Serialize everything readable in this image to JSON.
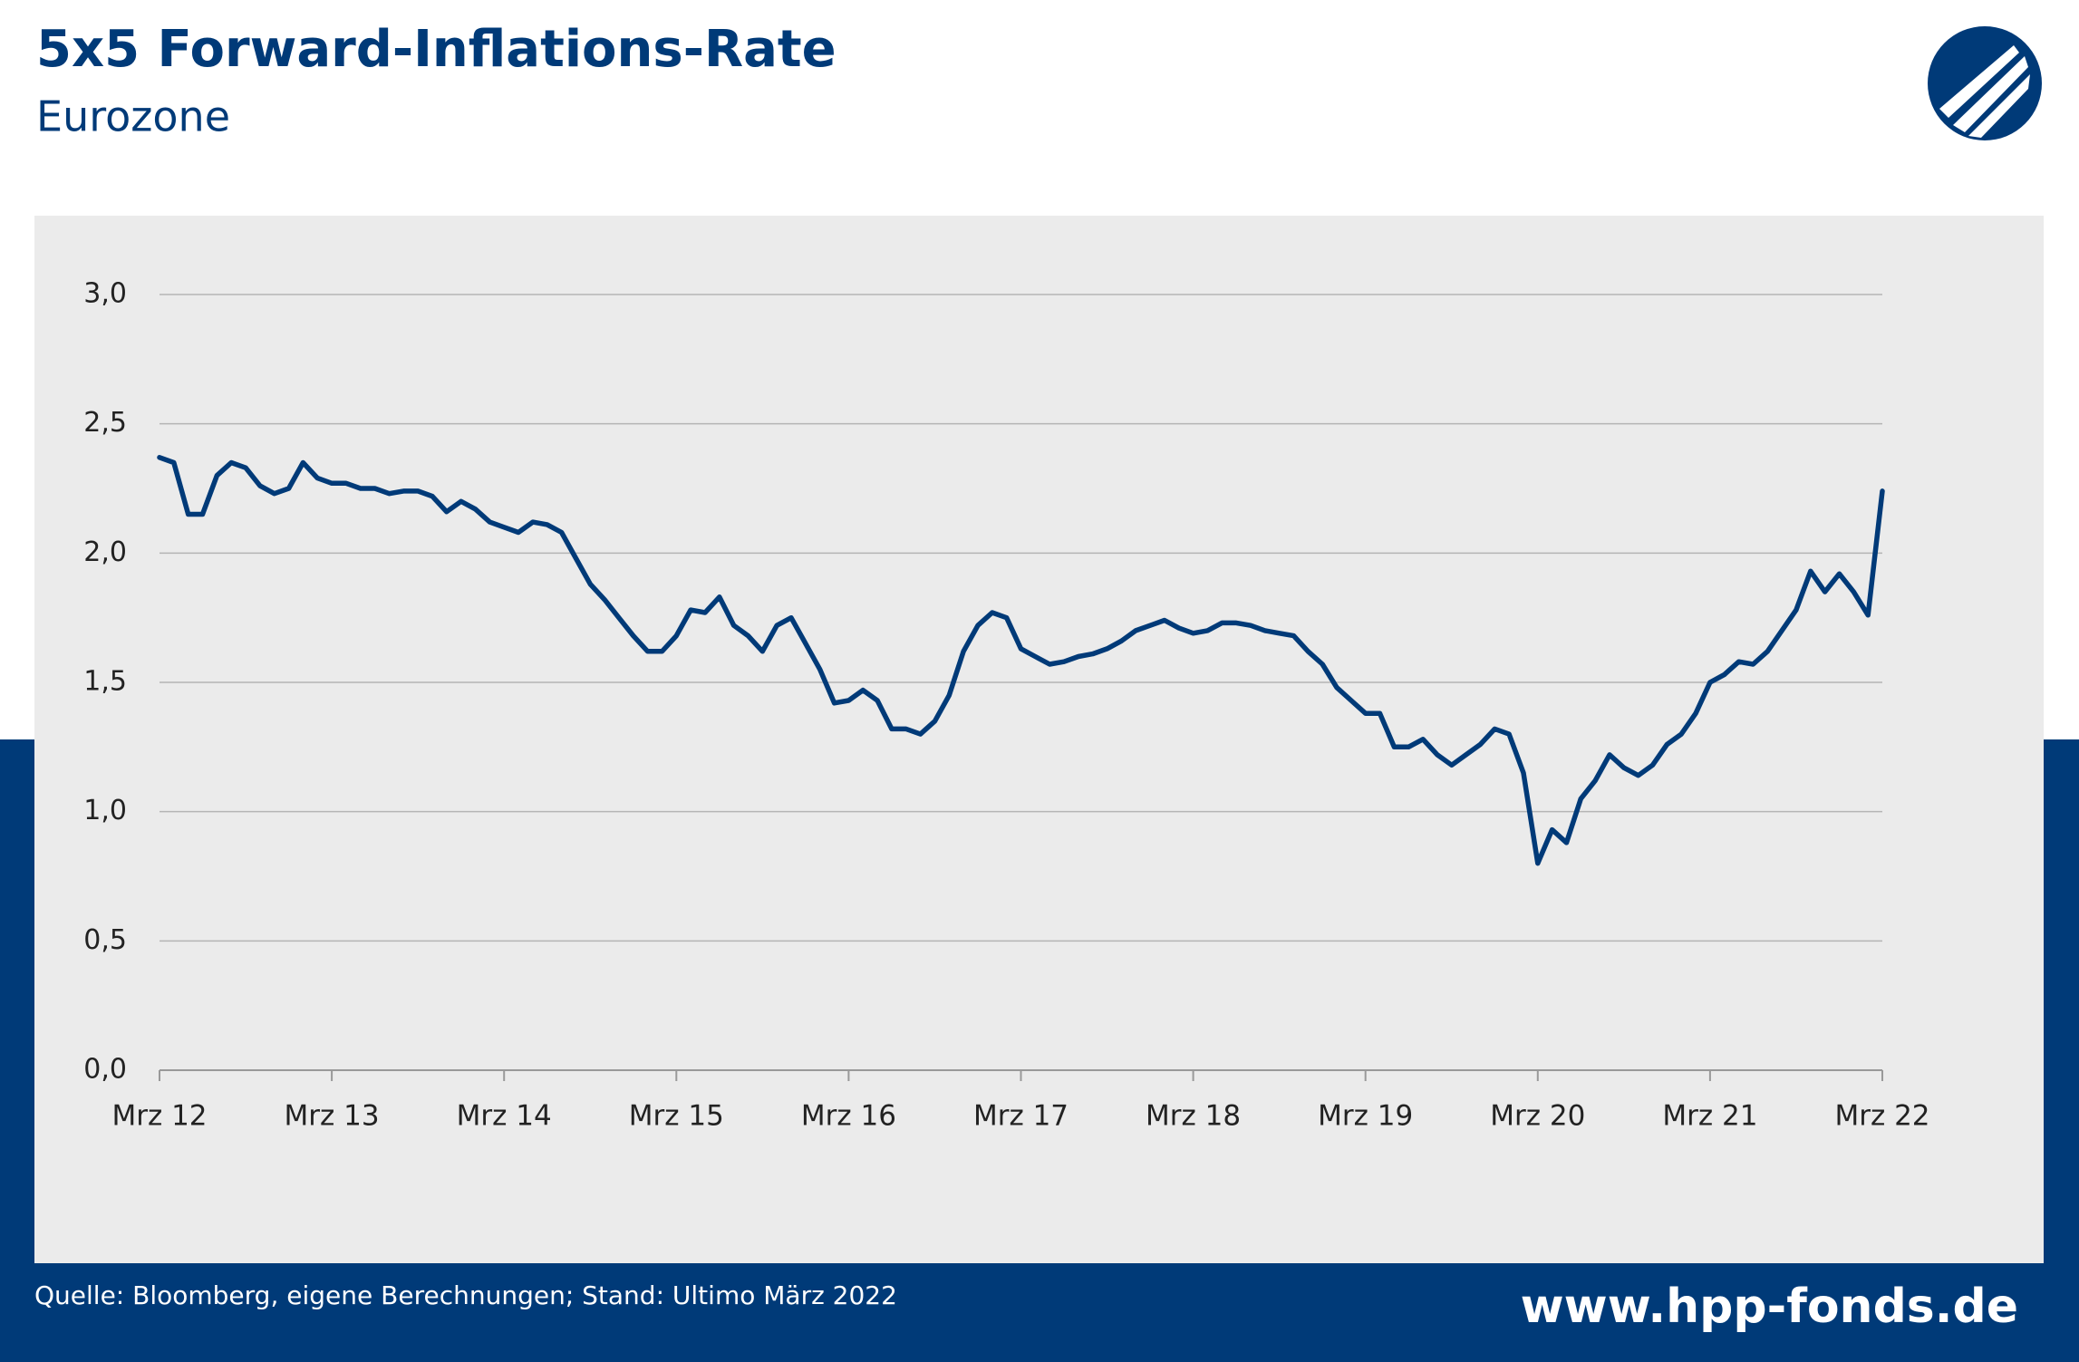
{
  "chart_data": {
    "type": "line",
    "title": "5x5 Forward-Inflations-Rate",
    "subtitle": "Eurozone",
    "source": "Quelle: Bloomberg, eigene Berechnungen; Stand: Ultimo März 2022",
    "website": "www.hpp-fonds.de",
    "categories": [
      "Mrz 12",
      null,
      null,
      null,
      null,
      null,
      null,
      null,
      null,
      null,
      null,
      null,
      "Mrz 13",
      null,
      null,
      null,
      null,
      null,
      null,
      null,
      null,
      null,
      null,
      null,
      "Mrz 14",
      null,
      null,
      null,
      null,
      null,
      null,
      null,
      null,
      null,
      null,
      null,
      "Mrz 15",
      null,
      null,
      null,
      null,
      null,
      null,
      null,
      null,
      null,
      null,
      null,
      "Mrz 16",
      null,
      null,
      null,
      null,
      null,
      null,
      null,
      null,
      null,
      null,
      null,
      "Mrz 17",
      null,
      null,
      null,
      null,
      null,
      null,
      null,
      null,
      null,
      null,
      null,
      "Mrz 18",
      null,
      null,
      null,
      null,
      null,
      null,
      null,
      null,
      null,
      null,
      null,
      "Mrz 19",
      null,
      null,
      null,
      null,
      null,
      null,
      null,
      null,
      null,
      null,
      null,
      "Mrz 20",
      null,
      null,
      null,
      null,
      null,
      null,
      null,
      null,
      null,
      null,
      null,
      "Mrz 21",
      null,
      null,
      null,
      null,
      null,
      null,
      null,
      null,
      null,
      null,
      null,
      "Mrz 22"
    ],
    "series": [
      {
        "name": "5x5 Forward-Inflations-Rate",
        "color": "#003a78",
        "values": [
          2.37,
          2.35,
          2.15,
          2.15,
          2.3,
          2.35,
          2.33,
          2.26,
          2.23,
          2.25,
          2.35,
          2.29,
          2.27,
          2.27,
          2.25,
          2.25,
          2.23,
          2.24,
          2.24,
          2.22,
          2.16,
          2.2,
          2.17,
          2.12,
          2.1,
          2.08,
          2.12,
          2.11,
          2.08,
          1.98,
          1.88,
          1.82,
          1.75,
          1.68,
          1.62,
          1.62,
          1.68,
          1.78,
          1.77,
          1.83,
          1.72,
          1.68,
          1.62,
          1.72,
          1.75,
          1.65,
          1.55,
          1.42,
          1.43,
          1.47,
          1.43,
          1.32,
          1.32,
          1.3,
          1.35,
          1.45,
          1.62,
          1.72,
          1.77,
          1.75,
          1.63,
          1.6,
          1.57,
          1.58,
          1.6,
          1.61,
          1.63,
          1.66,
          1.7,
          1.72,
          1.74,
          1.71,
          1.69,
          1.7,
          1.73,
          1.73,
          1.72,
          1.7,
          1.69,
          1.68,
          1.62,
          1.57,
          1.48,
          1.43,
          1.38,
          1.38,
          1.25,
          1.25,
          1.28,
          1.22,
          1.18,
          1.22,
          1.26,
          1.32,
          1.3,
          1.15,
          0.8,
          0.93,
          0.88,
          1.05,
          1.12,
          1.22,
          1.17,
          1.14,
          1.18,
          1.26,
          1.3,
          1.38,
          1.5,
          1.53,
          1.58,
          1.57,
          1.62,
          1.7,
          1.78,
          1.93,
          1.85,
          1.92,
          1.85,
          1.76,
          2.24
        ]
      }
    ],
    "ylim": [
      0,
      3
    ],
    "yticks": [
      {
        "value": 0,
        "label": "0,0"
      },
      {
        "value": 0.5,
        "label": "0,5"
      },
      {
        "value": 1,
        "label": "1,0"
      },
      {
        "value": 1.5,
        "label": "1,5"
      },
      {
        "value": 2,
        "label": "2,0"
      },
      {
        "value": 2.5,
        "label": "2,5"
      },
      {
        "value": 3,
        "label": "3,0"
      }
    ],
    "grid": true
  }
}
